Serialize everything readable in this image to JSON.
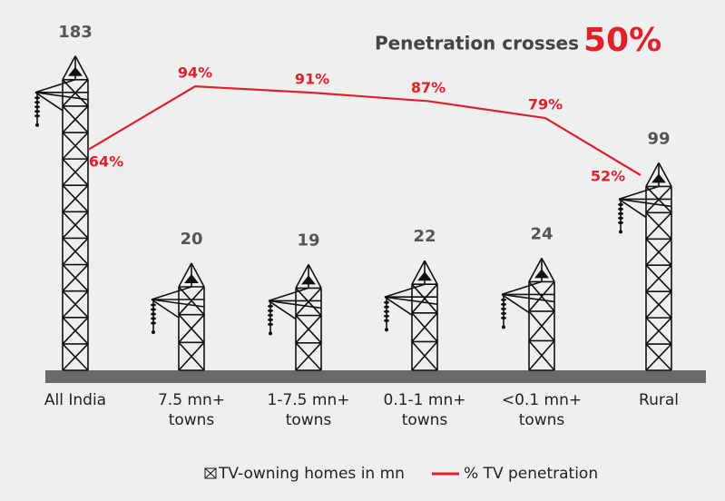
{
  "chart_data": {
    "type": "pictograph-line",
    "title": "Penetration crosses",
    "title_highlight": "50%",
    "categories": [
      "All India",
      "7.5 mn+ towns",
      "1-7.5 mn+ towns",
      "0.1-1 mn+ towns",
      "<0.1 mn+ towns",
      "Rural"
    ],
    "series": [
      {
        "name": "TV-owning homes in mn",
        "color": "#111111",
        "values": [
          183,
          20,
          19,
          22,
          24,
          99
        ]
      },
      {
        "name": "% TV penetration",
        "color": "#e0202a",
        "values": [
          64,
          94,
          91,
          87,
          79,
          52
        ],
        "value_labels": [
          "64%",
          "94%",
          "91%",
          "87%",
          "79%",
          "52%"
        ]
      }
    ]
  }
}
